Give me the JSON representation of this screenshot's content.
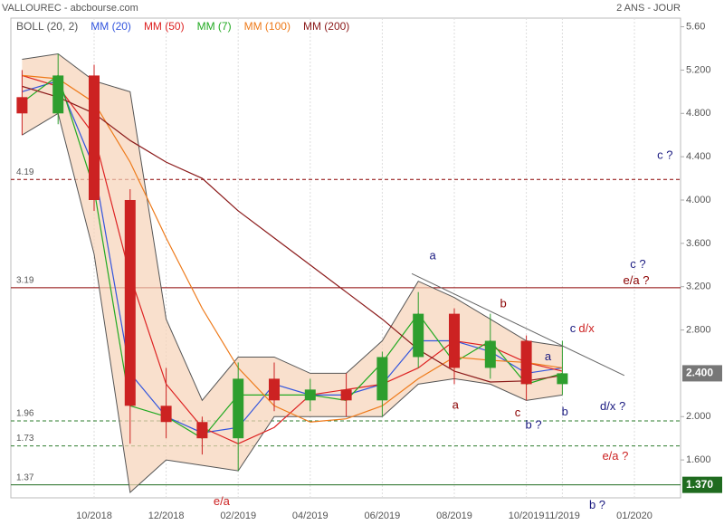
{
  "chart_data": {
    "type": "candlestick",
    "title": "VALLOUREC - abcbourse.com",
    "period": "2 ANS - JOUR",
    "categories": [
      null,
      null,
      "10/2018",
      null,
      "12/2018",
      null,
      "02/2019",
      null,
      "04/2019",
      null,
      "06/2019",
      null,
      "08/2019",
      null,
      "10/2019",
      "11/2019",
      null,
      "01/2020"
    ],
    "open": [
      4.95,
      4.8,
      5.15,
      4.0,
      2.1,
      1.95,
      1.8,
      2.35,
      2.15,
      2.25,
      2.15,
      2.55,
      2.95,
      2.45,
      2.7,
      2.3,
      null,
      null
    ],
    "high": [
      5.2,
      5.35,
      5.25,
      4.1,
      2.45,
      2.0,
      2.5,
      2.5,
      2.35,
      2.4,
      2.6,
      3.15,
      3.0,
      2.95,
      2.75,
      2.7,
      null,
      null
    ],
    "low": [
      4.6,
      4.7,
      3.9,
      1.75,
      1.8,
      1.65,
      1.5,
      2.05,
      2.05,
      2.0,
      2.0,
      2.45,
      2.3,
      2.35,
      2.15,
      2.2,
      null,
      null
    ],
    "close": [
      4.8,
      5.15,
      4.0,
      2.1,
      1.95,
      1.8,
      2.35,
      2.15,
      2.25,
      2.15,
      2.55,
      2.95,
      2.45,
      2.7,
      2.3,
      2.4,
      null,
      null
    ],
    "up_color": "#2e9e2e",
    "down_color": "#cc2222",
    "band": {
      "name": "BOLL (20, 2)",
      "color": "#555555",
      "fill": "#f7d3b8",
      "upper": [
        5.3,
        5.35,
        5.1,
        5.0,
        2.9,
        2.15,
        2.55,
        2.55,
        2.4,
        2.4,
        2.7,
        3.25,
        3.1,
        2.9,
        2.7,
        2.65,
        null,
        null
      ],
      "lower": [
        4.6,
        4.8,
        3.5,
        1.3,
        1.6,
        1.55,
        1.5,
        2.0,
        2.0,
        2.0,
        2.0,
        2.3,
        2.35,
        2.3,
        2.15,
        2.2,
        null,
        null
      ]
    },
    "series": [
      {
        "name": "MM (20)",
        "color": "#3355dd",
        "values": [
          5.0,
          5.1,
          4.3,
          2.4,
          2.0,
          1.85,
          1.9,
          2.3,
          2.2,
          2.2,
          2.3,
          2.7,
          2.7,
          2.6,
          2.4,
          2.45,
          null,
          null
        ]
      },
      {
        "name": "MM (50)",
        "color": "#dd2222",
        "values": [
          5.15,
          5.05,
          4.6,
          3.3,
          2.3,
          1.9,
          1.75,
          1.9,
          2.2,
          2.25,
          2.3,
          2.45,
          2.7,
          2.65,
          2.5,
          2.42,
          null,
          null
        ]
      },
      {
        "name": "MM (7)",
        "color": "#22aa22",
        "values": [
          4.9,
          5.15,
          4.1,
          2.1,
          2.0,
          1.8,
          2.2,
          2.2,
          2.2,
          2.15,
          2.5,
          2.95,
          2.5,
          2.7,
          2.3,
          2.4,
          null,
          null
        ]
      },
      {
        "name": "MM (100)",
        "color": "#ee7a1a",
        "values": [
          5.15,
          5.12,
          4.9,
          4.35,
          3.65,
          3.0,
          2.45,
          2.1,
          1.95,
          1.98,
          2.1,
          2.35,
          2.55,
          2.52,
          2.5,
          2.45,
          null,
          null
        ]
      },
      {
        "name": "MM (200)",
        "color": "#8b1a1a",
        "values": [
          5.05,
          4.95,
          4.8,
          4.55,
          4.35,
          4.2,
          3.9,
          3.65,
          3.4,
          3.15,
          2.9,
          2.62,
          2.42,
          2.32,
          2.33,
          2.38,
          null,
          null
        ]
      }
    ],
    "levels": [
      {
        "value": 4.19,
        "color": "#8b0000",
        "dashed": true
      },
      {
        "value": 3.19,
        "color": "#8b0000",
        "dashed": false
      },
      {
        "value": 1.96,
        "color": "#2e7d2e",
        "dashed": true
      },
      {
        "value": 1.73,
        "color": "#2e7d2e",
        "dashed": true
      },
      {
        "value": 1.37,
        "color": "#1f6b1f",
        "dashed": false
      }
    ],
    "price_labels": [
      {
        "value": 2.4,
        "label": "2.400",
        "color": "#777777"
      },
      {
        "value": 1.37,
        "label": "1.370",
        "color": "#1f6b1f"
      }
    ],
    "trendline": {
      "x": [
        10.82,
        16.72
      ],
      "y": [
        3.32,
        2.38
      ],
      "color": "#666666"
    },
    "annotations": [
      {
        "text": "c ?",
        "x": 17.85,
        "y": 4.41,
        "color": "#1a1a80"
      },
      {
        "text": "c ?",
        "x": 17.1,
        "y": 3.4,
        "color": "#1a1a80"
      },
      {
        "text": "e/a ?",
        "x": 17.05,
        "y": 3.25,
        "color": "#8b0000"
      },
      {
        "text": "a",
        "x": 11.4,
        "y": 3.48,
        "color": "#1a1a80"
      },
      {
        "text": "b",
        "x": 13.36,
        "y": 3.04,
        "color": "#8b0000"
      },
      {
        "text": "c",
        "x": 15.29,
        "y": 2.81,
        "color": "#1a1a80"
      },
      {
        "text": "d/x",
        "x": 15.67,
        "y": 2.81,
        "color": "#cc2222"
      },
      {
        "text": "a",
        "x": 14.6,
        "y": 2.55,
        "color": "#1a1a80"
      },
      {
        "text": "a",
        "x": 12.03,
        "y": 2.1,
        "color": "#8b0000"
      },
      {
        "text": "c",
        "x": 13.76,
        "y": 2.03,
        "color": "#8b0000"
      },
      {
        "text": "b ?",
        "x": 14.2,
        "y": 1.92,
        "color": "#1a1a80"
      },
      {
        "text": "b",
        "x": 15.07,
        "y": 2.04,
        "color": "#1a1a80"
      },
      {
        "text": "d/x ?",
        "x": 16.4,
        "y": 2.09,
        "color": "#1a1a80"
      },
      {
        "text": "e/a ?",
        "x": 16.47,
        "y": 1.63,
        "color": "#cc2222"
      },
      {
        "text": "e/a",
        "x": 5.54,
        "y": 1.21,
        "color": "#cc2222"
      },
      {
        "text": "b ?",
        "x": 15.97,
        "y": 1.18,
        "color": "#1a1a80"
      }
    ],
    "ylim": [
      1.25,
      5.68
    ],
    "yticks": [
      {
        "value": 5.6,
        "label": "5.60"
      },
      {
        "value": 5.2,
        "label": "5.200"
      },
      {
        "value": 4.8,
        "label": "4.800"
      },
      {
        "value": 4.4,
        "label": "4.400"
      },
      {
        "value": 4.0,
        "label": "4.000"
      },
      {
        "value": 3.6,
        "label": "3.600"
      },
      {
        "value": 3.2,
        "label": "3.200"
      },
      {
        "value": 2.8,
        "label": "2.800"
      },
      {
        "value": 2.0,
        "label": "2.000"
      },
      {
        "value": 1.6,
        "label": "1.600"
      }
    ],
    "grid": "x"
  }
}
